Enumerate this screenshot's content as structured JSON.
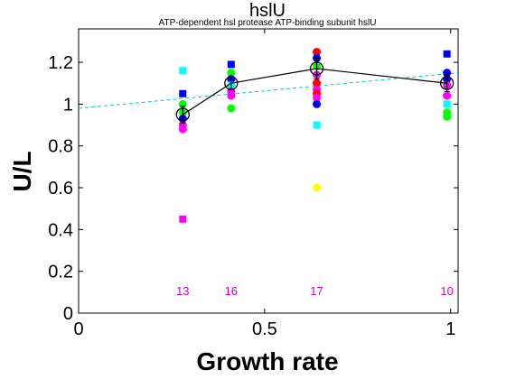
{
  "chart_data": {
    "type": "scatter",
    "title": "hslU",
    "subtitle": "ATP-dependent hsl protease ATP-binding subunit hslU",
    "xlabel": "Growth rate",
    "ylabel": "U/L",
    "xlim": [
      0,
      1.02
    ],
    "ylim": [
      0,
      1.36
    ],
    "xticks": [
      0,
      0.5,
      1
    ],
    "xtick_labels": [
      "0",
      "0.5",
      "1"
    ],
    "yticks": [
      0,
      0.2,
      0.4,
      0.6,
      0.8,
      1.0,
      1.2
    ],
    "ytick_labels": [
      "0",
      "0.2",
      "0.4",
      "0.6",
      "0.8",
      "1",
      "1.2"
    ],
    "grid": false,
    "groups": [
      {
        "x": 0.28,
        "count": "13"
      },
      {
        "x": 0.41,
        "count": "16"
      },
      {
        "x": 0.64,
        "count": "17"
      },
      {
        "x": 0.99,
        "count": "10"
      }
    ],
    "replicate_points": [
      {
        "x": 0.28,
        "y": 1.16,
        "color": "#00ffff",
        "marker": "square"
      },
      {
        "x": 0.28,
        "y": 1.05,
        "color": "#0000ff",
        "marker": "square"
      },
      {
        "x": 0.28,
        "y": 1.0,
        "color": "#00ff00",
        "marker": "circle"
      },
      {
        "x": 0.28,
        "y": 0.96,
        "color": "#00ff00",
        "marker": "circle"
      },
      {
        "x": 0.28,
        "y": 0.93,
        "color": "#0000ff",
        "marker": "circle"
      },
      {
        "x": 0.28,
        "y": 0.9,
        "color": "#ff00ff",
        "marker": "circle"
      },
      {
        "x": 0.28,
        "y": 0.88,
        "color": "#ff00ff",
        "marker": "circle"
      },
      {
        "x": 0.28,
        "y": 0.45,
        "color": "#ff00ff",
        "marker": "square"
      },
      {
        "x": 0.41,
        "y": 1.19,
        "color": "#0000ff",
        "marker": "square"
      },
      {
        "x": 0.41,
        "y": 1.15,
        "color": "#00ff00",
        "marker": "circle"
      },
      {
        "x": 0.41,
        "y": 1.12,
        "color": "#0000ff",
        "marker": "circle"
      },
      {
        "x": 0.41,
        "y": 1.09,
        "color": "#00ffff",
        "marker": "circle"
      },
      {
        "x": 0.41,
        "y": 1.06,
        "color": "#ff00ff",
        "marker": "circle"
      },
      {
        "x": 0.41,
        "y": 1.04,
        "color": "#ff00ff",
        "marker": "circle"
      },
      {
        "x": 0.41,
        "y": 0.98,
        "color": "#00ff00",
        "marker": "circle"
      },
      {
        "x": 0.64,
        "y": 1.25,
        "color": "#ff0000",
        "marker": "circle"
      },
      {
        "x": 0.64,
        "y": 1.22,
        "color": "#0000ff",
        "marker": "circle"
      },
      {
        "x": 0.64,
        "y": 1.18,
        "color": "#00ff00",
        "marker": "circle"
      },
      {
        "x": 0.64,
        "y": 1.14,
        "color": "#ff00ff",
        "marker": "circle"
      },
      {
        "x": 0.64,
        "y": 1.1,
        "color": "#ff0000",
        "marker": "circle"
      },
      {
        "x": 0.64,
        "y": 1.07,
        "color": "#ff00ff",
        "marker": "circle"
      },
      {
        "x": 0.64,
        "y": 1.05,
        "color": "#ff0000",
        "marker": "circle"
      },
      {
        "x": 0.64,
        "y": 1.03,
        "color": "#ff00ff",
        "marker": "circle"
      },
      {
        "x": 0.64,
        "y": 1.0,
        "color": "#0000ff",
        "marker": "circle"
      },
      {
        "x": 0.64,
        "y": 0.9,
        "color": "#00ffff",
        "marker": "square"
      },
      {
        "x": 0.64,
        "y": 0.6,
        "color": "#ffff00",
        "marker": "circle"
      },
      {
        "x": 0.99,
        "y": 1.24,
        "color": "#0000ff",
        "marker": "square"
      },
      {
        "x": 0.99,
        "y": 1.15,
        "color": "#0000ff",
        "marker": "circle"
      },
      {
        "x": 0.99,
        "y": 1.12,
        "color": "#0000ff",
        "marker": "circle"
      },
      {
        "x": 0.99,
        "y": 1.09,
        "color": "#ff00ff",
        "marker": "circle"
      },
      {
        "x": 0.99,
        "y": 1.04,
        "color": "#ff00ff",
        "marker": "circle"
      },
      {
        "x": 0.99,
        "y": 1.0,
        "color": "#00ffff",
        "marker": "square"
      },
      {
        "x": 0.99,
        "y": 0.96,
        "color": "#00ff00",
        "marker": "circle"
      },
      {
        "x": 0.99,
        "y": 0.94,
        "color": "#00ff00",
        "marker": "circle"
      }
    ],
    "mean_series": {
      "color": "#000000",
      "x": [
        0.28,
        0.41,
        0.64,
        0.99
      ],
      "y": [
        0.95,
        1.1,
        1.17,
        1.1
      ],
      "err": [
        0.04,
        0.03,
        0.05,
        0.04
      ]
    },
    "fit_line": {
      "color": "#00cccc",
      "style": "dashed",
      "x": [
        0,
        1.02
      ],
      "y": [
        0.98,
        1.15
      ]
    }
  }
}
